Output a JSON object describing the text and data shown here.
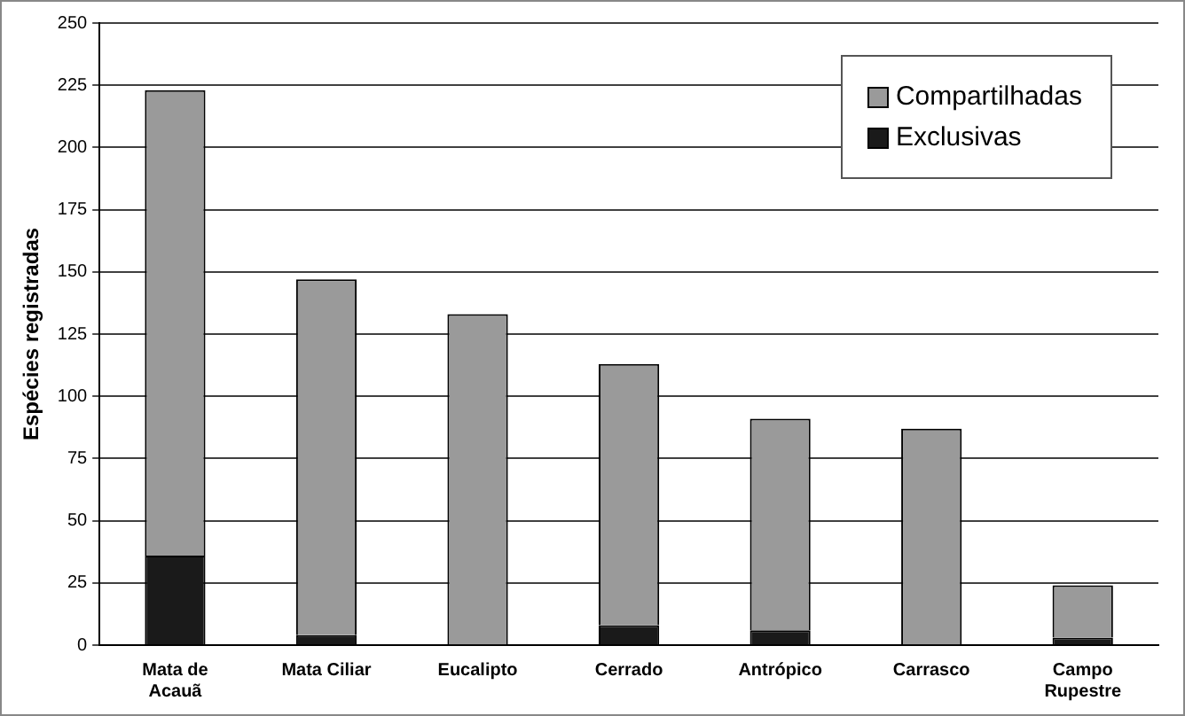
{
  "chart_data": {
    "type": "bar",
    "ylabel": "Espécies registradas",
    "categories": [
      "Mata de\nAcauã",
      "Mata Ciliar",
      "Eucalipto",
      "Cerrado",
      "Antrópico",
      "Carrasco",
      "Campo\nRupestre"
    ],
    "stacked": true,
    "series": [
      {
        "name": "Exclusivas",
        "color": "#1a1a1a",
        "values": [
          36,
          4,
          0,
          8,
          6,
          0,
          3
        ]
      },
      {
        "name": "Compartilhadas",
        "color": "#9a9a9a",
        "values": [
          187,
          143,
          133,
          105,
          85,
          87,
          21
        ]
      }
    ],
    "ylim": [
      0,
      250
    ],
    "yticks": [
      0,
      25,
      50,
      75,
      100,
      125,
      150,
      175,
      200,
      225,
      250
    ],
    "grid": "y",
    "legend": "top right"
  }
}
